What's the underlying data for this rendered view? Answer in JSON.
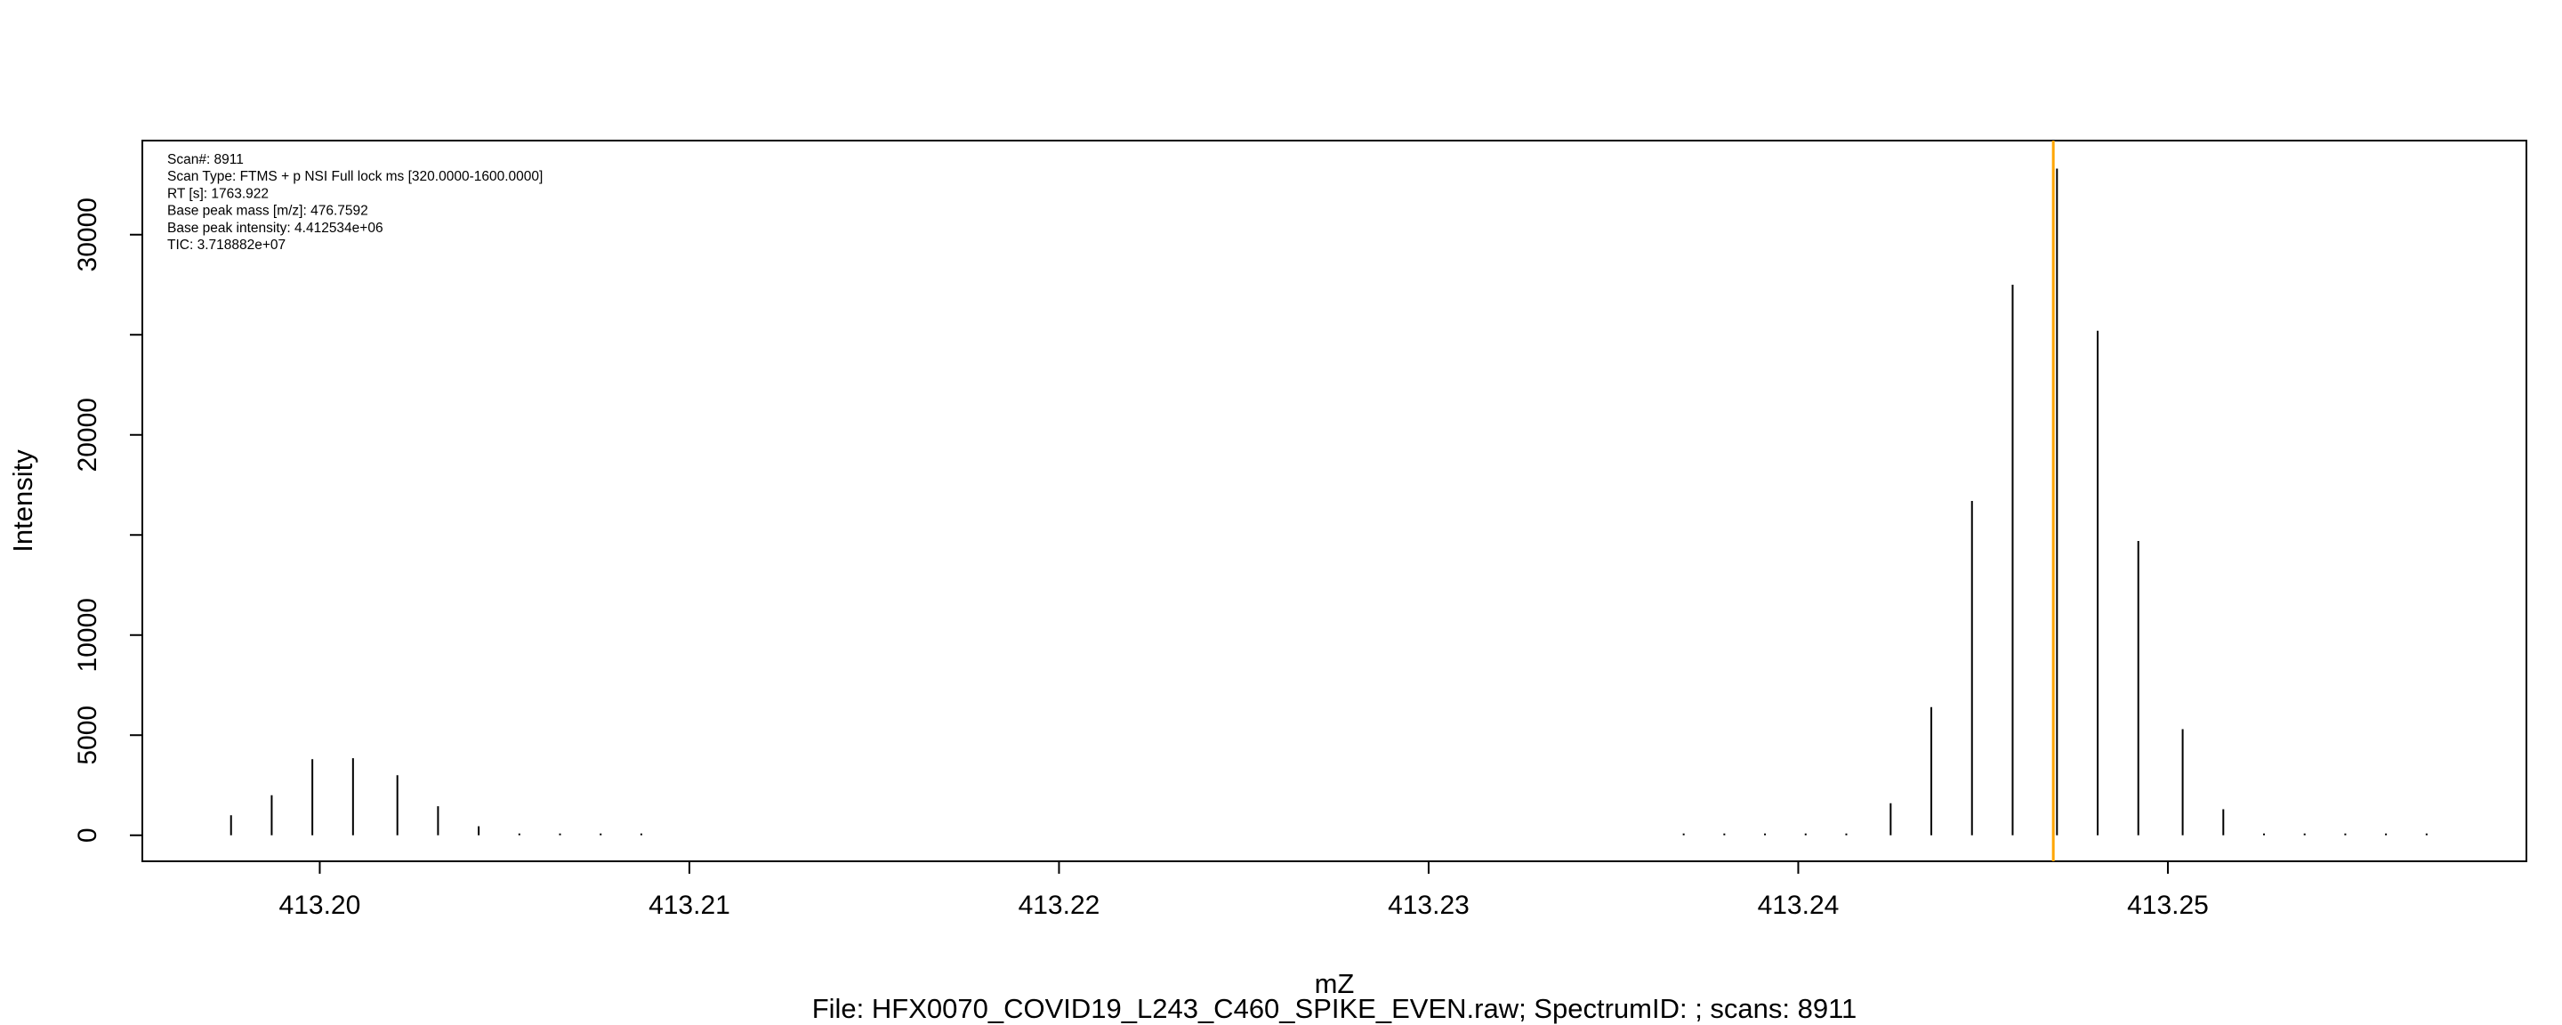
{
  "chart_data": {
    "type": "bar",
    "xlabel": "mZ",
    "ylabel": "Intensity",
    "caption": "File: HFX0070_COVID19_L243_C460_SPIKE_EVEN.raw; SpectrumID: ; scans: 8911",
    "info": [
      "Scan#:  8911",
      "Scan Type:  FTMS + p NSI Full lock ms [320.0000-1600.0000]",
      "RT [s]:  1763.922",
      "Base peak mass [m/z]:  476.7592",
      "Base peak intensity:  4.412534e+06",
      "TIC:  3.718882e+07"
    ],
    "xlim": [
      413.1952,
      413.2597
    ],
    "ylim": [
      -1300,
      34700
    ],
    "x_ticks": [
      413.2,
      413.21,
      413.22,
      413.23,
      413.24,
      413.25
    ],
    "x_tick_labels": [
      "413.20",
      "413.21",
      "413.22",
      "413.23",
      "413.24",
      "413.25"
    ],
    "y_ticks": [
      0,
      5000,
      10000,
      20000,
      30000
    ],
    "y_tick_labels": [
      "0",
      "5000",
      "10000",
      "20000",
      "30000"
    ],
    "y_minor_ticks": [
      15000,
      25000
    ],
    "marker": {
      "x": 413.2469,
      "color": "#ffa500"
    },
    "peaks": [
      {
        "x": 413.1976,
        "y": 1000
      },
      {
        "x": 413.1987,
        "y": 2000
      },
      {
        "x": 413.1998,
        "y": 3800
      },
      {
        "x": 413.2009,
        "y": 3850
      },
      {
        "x": 413.2021,
        "y": 3000
      },
      {
        "x": 413.2032,
        "y": 1450
      },
      {
        "x": 413.2043,
        "y": 450
      },
      {
        "x": 413.2054,
        "y": 50
      },
      {
        "x": 413.2065,
        "y": 30
      },
      {
        "x": 413.2076,
        "y": 25
      },
      {
        "x": 413.2087,
        "y": 20
      },
      {
        "x": 413.2369,
        "y": 20
      },
      {
        "x": 413.238,
        "y": 20
      },
      {
        "x": 413.2391,
        "y": 20
      },
      {
        "x": 413.2402,
        "y": 20
      },
      {
        "x": 413.2413,
        "y": 30
      },
      {
        "x": 413.2425,
        "y": 1600
      },
      {
        "x": 413.2436,
        "y": 6400
      },
      {
        "x": 413.2447,
        "y": 16700
      },
      {
        "x": 413.2458,
        "y": 27500
      },
      {
        "x": 413.247,
        "y": 33300
      },
      {
        "x": 413.2481,
        "y": 25200
      },
      {
        "x": 413.2492,
        "y": 14700
      },
      {
        "x": 413.2504,
        "y": 5300
      },
      {
        "x": 413.2515,
        "y": 1300
      },
      {
        "x": 413.2526,
        "y": 40
      },
      {
        "x": 413.2537,
        "y": 30
      },
      {
        "x": 413.2548,
        "y": 25
      },
      {
        "x": 413.2559,
        "y": 20
      },
      {
        "x": 413.257,
        "y": 20
      }
    ]
  }
}
